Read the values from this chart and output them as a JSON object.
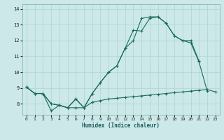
{
  "xlabel": "Humidex (Indice chaleur)",
  "background_color": "#cce8e8",
  "grid_color": "#aad4d4",
  "line_color": "#1a6b5a",
  "xlim": [
    -0.5,
    23.5
  ],
  "ylim": [
    7.3,
    14.3
  ],
  "xticks": [
    0,
    1,
    2,
    3,
    4,
    5,
    6,
    7,
    8,
    9,
    10,
    11,
    12,
    13,
    14,
    15,
    16,
    17,
    18,
    19,
    20,
    21,
    22,
    23
  ],
  "yticks": [
    8,
    9,
    10,
    11,
    12,
    13,
    14
  ],
  "line1_x": [
    0,
    1,
    2,
    3,
    4,
    5,
    6,
    7,
    8,
    9,
    10,
    11,
    12,
    13,
    14,
    15,
    16,
    17,
    18,
    19,
    20,
    21,
    22,
    23
  ],
  "line1_y": [
    9.05,
    8.65,
    8.65,
    7.55,
    7.9,
    7.75,
    7.75,
    7.75,
    8.1,
    8.2,
    8.3,
    8.35,
    8.4,
    8.45,
    8.5,
    8.55,
    8.6,
    8.65,
    8.7,
    8.75,
    8.8,
    8.85,
    8.9,
    8.75
  ],
  "line2_x": [
    0,
    1,
    2,
    3,
    4,
    5,
    6,
    7,
    8,
    9,
    10,
    11,
    12,
    13,
    14,
    15,
    16,
    17,
    18,
    19,
    20,
    21,
    22
  ],
  "line2_y": [
    9.05,
    8.65,
    8.65,
    8.0,
    7.9,
    7.75,
    8.3,
    7.75,
    8.65,
    9.35,
    10.0,
    10.4,
    11.5,
    12.65,
    12.6,
    13.4,
    13.5,
    13.1,
    12.3,
    12.0,
    11.85,
    10.65,
    8.8
  ],
  "line3_x": [
    0,
    1,
    2,
    3,
    4,
    5,
    6,
    7,
    8,
    9,
    10,
    11,
    12,
    13,
    14,
    15,
    16,
    17,
    18,
    19,
    20,
    21
  ],
  "line3_y": [
    9.05,
    8.65,
    8.65,
    8.0,
    7.9,
    7.75,
    8.3,
    7.75,
    8.65,
    9.35,
    10.0,
    10.4,
    11.5,
    12.0,
    13.4,
    13.5,
    13.5,
    13.1,
    12.3,
    12.0,
    12.0,
    10.7
  ]
}
